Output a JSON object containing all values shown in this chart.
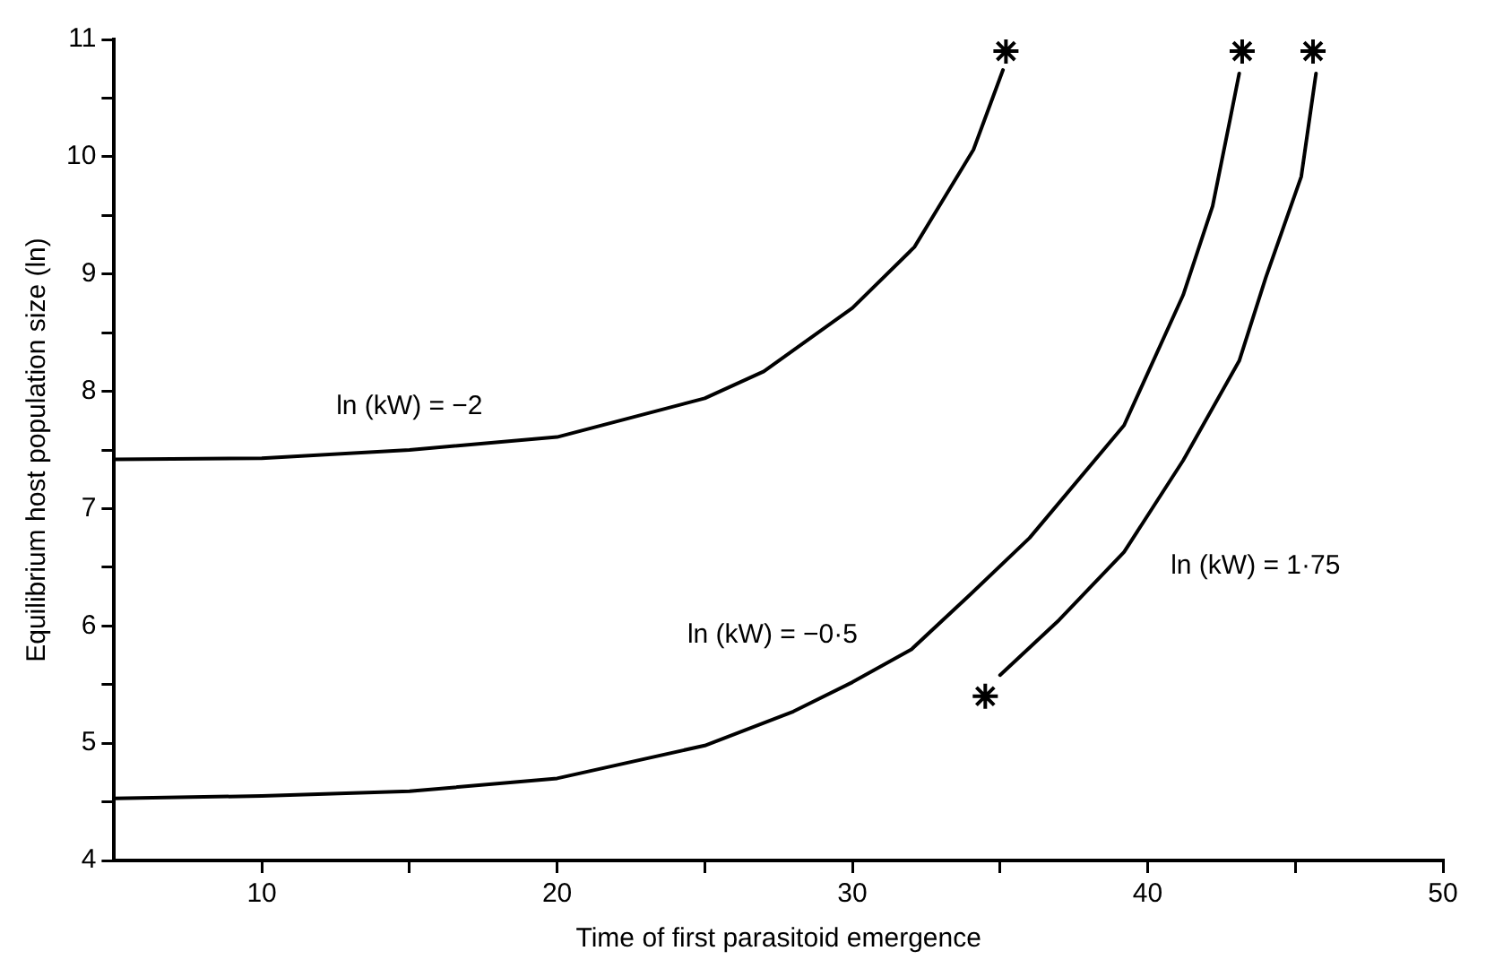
{
  "chart_data": {
    "type": "line",
    "xlabel": "Time of first parasitoid emergence",
    "ylabel": "Equilibrium host population size (ln)",
    "xlim": [
      5,
      50
    ],
    "ylim": [
      4,
      11
    ],
    "xticks": [
      10,
      {
        "value": 15,
        "label": null
      },
      20,
      {
        "value": 25,
        "label": null
      },
      30,
      {
        "value": 35,
        "label": null
      },
      40,
      {
        "value": 45,
        "label": null
      },
      50
    ],
    "yticks": [
      4,
      {
        "value": 4.5,
        "label": null
      },
      5,
      {
        "value": 5.5,
        "label": null
      },
      6,
      {
        "value": 6.5,
        "label": null
      },
      7,
      {
        "value": 7.5,
        "label": null
      },
      8,
      {
        "value": 8.5,
        "label": null
      },
      9,
      {
        "value": 9.5,
        "label": null
      },
      10,
      {
        "value": 10.5,
        "label": null
      },
      11
    ],
    "grid": false,
    "legend": false,
    "marker": "none",
    "line_style": "solid",
    "series": [
      {
        "name": "ln (kW) = −2",
        "color": "#000000",
        "x": [
          5,
          10,
          15,
          20,
          25,
          27,
          30,
          32.1,
          34.1,
          35.1
        ],
        "values": [
          7.42,
          7.43,
          7.5,
          7.61,
          7.94,
          8.17,
          8.71,
          9.23,
          10.06,
          10.74
        ]
      },
      {
        "name": "ln (kW) = −0·5",
        "color": "#000000",
        "x": [
          5,
          10,
          15,
          20,
          25,
          28,
          30,
          32,
          34,
          36,
          39.2,
          41.2,
          42.2,
          42.8,
          43.1
        ],
        "values": [
          4.53,
          4.55,
          4.59,
          4.7,
          4.98,
          5.27,
          5.52,
          5.8,
          6.27,
          6.75,
          7.71,
          8.82,
          9.58,
          10.33,
          10.71
        ]
      },
      {
        "name": "ln (kW) = 1·75",
        "color": "#000000",
        "x": [
          35,
          37,
          39.2,
          41.2,
          43.1,
          44,
          45.2,
          45.7
        ],
        "values": [
          5.58,
          6.05,
          6.63,
          7.41,
          8.26,
          8.97,
          9.83,
          10.71
        ]
      },
      {
        "type": "scatter",
        "color": "#000000",
        "marker": "cross",
        "x": [
          35.2,
          43.2,
          45.6,
          34.5
        ],
        "values": [
          10.9,
          10.9,
          10.9,
          5.4
        ]
      }
    ]
  }
}
